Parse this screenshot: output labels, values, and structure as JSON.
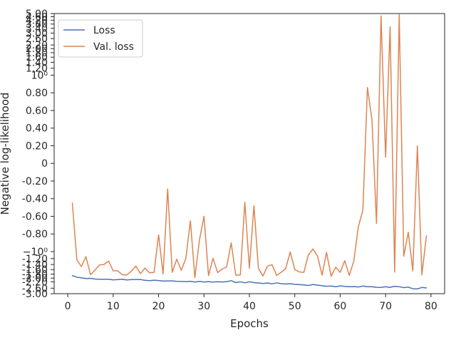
{
  "chart_data": {
    "type": "line",
    "xlabel": "Epochs",
    "ylabel": "Negative log-likelihood",
    "yscale": "symlog",
    "grid": false,
    "legend_position": "top-left",
    "xlim": [
      -3,
      83
    ],
    "ylim": [
      -3.0,
      5.0
    ],
    "xticks": [
      {
        "value": 0,
        "label": "0"
      },
      {
        "value": 10,
        "label": "10"
      },
      {
        "value": 20,
        "label": "20"
      },
      {
        "value": 30,
        "label": "30"
      },
      {
        "value": 40,
        "label": "40"
      },
      {
        "value": 50,
        "label": "50"
      },
      {
        "value": 60,
        "label": "60"
      },
      {
        "value": 70,
        "label": "70"
      },
      {
        "value": 80,
        "label": "80"
      }
    ],
    "yticks": [
      {
        "value": 5.0,
        "label": "5.00"
      },
      {
        "value": 4.6,
        "label": "4.60"
      },
      {
        "value": 4.2,
        "label": "4.20"
      },
      {
        "value": 3.8,
        "label": "3.80"
      },
      {
        "value": 3.4,
        "label": "3.40"
      },
      {
        "value": 3.0,
        "label": "3.00"
      },
      {
        "value": 2.6,
        "label": "2.60"
      },
      {
        "value": 2.2,
        "label": "2.20"
      },
      {
        "value": 2.0,
        "label": "2.00"
      },
      {
        "value": 1.8,
        "label": "1.80"
      },
      {
        "value": 1.6,
        "label": "1.60"
      },
      {
        "value": 1.4,
        "label": "1.40"
      },
      {
        "value": 1.2,
        "label": "1.20"
      },
      {
        "value": 1.0,
        "label": "10⁰"
      },
      {
        "value": 0.8,
        "label": "0.80"
      },
      {
        "value": 0.6,
        "label": "0.60"
      },
      {
        "value": 0.4,
        "label": "0.40"
      },
      {
        "value": 0.2,
        "label": "0.20"
      },
      {
        "value": 0.0,
        "label": "0"
      },
      {
        "value": -0.2,
        "label": "-0.20"
      },
      {
        "value": -0.4,
        "label": "-0.40"
      },
      {
        "value": -0.6,
        "label": "-0.60"
      },
      {
        "value": -0.8,
        "label": "-0.80"
      },
      {
        "value": -1.0,
        "label": "−10⁰"
      },
      {
        "value": -1.2,
        "label": "-1.20"
      },
      {
        "value": -1.4,
        "label": "-1.40"
      },
      {
        "value": -1.6,
        "label": "-1.60"
      },
      {
        "value": -1.8,
        "label": "-1.80"
      },
      {
        "value": -2.0,
        "label": "-2.00"
      },
      {
        "value": -2.2,
        "label": "-2.20"
      },
      {
        "value": -2.6,
        "label": "-2.60"
      },
      {
        "value": -3.0,
        "label": "-3.00"
      }
    ],
    "x": [
      1,
      2,
      3,
      4,
      5,
      6,
      7,
      8,
      9,
      10,
      11,
      12,
      13,
      14,
      15,
      16,
      17,
      18,
      19,
      20,
      21,
      22,
      23,
      24,
      25,
      26,
      27,
      28,
      29,
      30,
      31,
      32,
      33,
      34,
      35,
      36,
      37,
      38,
      39,
      40,
      41,
      42,
      43,
      44,
      45,
      46,
      47,
      48,
      49,
      50,
      51,
      52,
      53,
      54,
      55,
      56,
      57,
      58,
      59,
      60,
      61,
      62,
      63,
      64,
      65,
      66,
      67,
      68,
      69,
      70,
      71,
      72,
      73,
      74,
      75,
      76,
      77,
      78,
      79
    ],
    "series": [
      {
        "name": "Loss",
        "color": "#4c72b0",
        "values": [
          -1.87,
          -1.95,
          -1.98,
          -2.02,
          -2.01,
          -2.05,
          -2.06,
          -2.06,
          -2.06,
          -2.09,
          -2.08,
          -2.06,
          -2.1,
          -2.08,
          -2.07,
          -2.07,
          -2.12,
          -2.14,
          -2.11,
          -2.13,
          -2.16,
          -2.15,
          -2.15,
          -2.17,
          -2.18,
          -2.19,
          -2.17,
          -2.21,
          -2.18,
          -2.21,
          -2.19,
          -2.22,
          -2.2,
          -2.21,
          -2.19,
          -2.14,
          -2.25,
          -2.2,
          -2.26,
          -2.2,
          -2.25,
          -2.27,
          -2.3,
          -2.27,
          -2.32,
          -2.26,
          -2.31,
          -2.33,
          -2.31,
          -2.35,
          -2.37,
          -2.39,
          -2.42,
          -2.36,
          -2.4,
          -2.44,
          -2.47,
          -2.46,
          -2.5,
          -2.45,
          -2.48,
          -2.5,
          -2.49,
          -2.52,
          -2.46,
          -2.5,
          -2.5,
          -2.54,
          -2.55,
          -2.5,
          -2.54,
          -2.47,
          -2.5,
          -2.56,
          -2.53,
          -2.64,
          -2.65,
          -2.55,
          -2.58
        ]
      },
      {
        "name": "Val. loss",
        "color": "#dd8452",
        "values": [
          -0.45,
          -1.24,
          -1.48,
          -1.14,
          -1.83,
          -1.62,
          -1.42,
          -1.4,
          -1.28,
          -1.65,
          -1.65,
          -1.83,
          -1.84,
          -1.67,
          -1.46,
          -1.78,
          -1.54,
          -1.74,
          -1.72,
          -0.81,
          -1.8,
          -0.29,
          -1.72,
          -1.22,
          -1.63,
          -1.2,
          -0.65,
          -1.97,
          -0.87,
          -0.6,
          -1.87,
          -1.19,
          -1.73,
          -1.58,
          -1.49,
          -0.9,
          -1.85,
          -1.84,
          -0.44,
          -1.55,
          -0.48,
          -1.56,
          -1.89,
          -1.46,
          -1.41,
          -1.86,
          -1.72,
          -1.55,
          -1.01,
          -1.6,
          -1.7,
          -1.72,
          -1.09,
          -0.97,
          -1.12,
          -1.85,
          -1.02,
          -1.9,
          -1.5,
          -1.72,
          -1.27,
          -1.86,
          -1.28,
          -0.72,
          -0.53,
          0.86,
          0.5,
          -0.68,
          4.69,
          0.07,
          3.54,
          -1.71,
          4.87,
          -1.13,
          -0.78,
          -1.66,
          0.2,
          -1.84,
          -0.82
        ]
      }
    ]
  }
}
